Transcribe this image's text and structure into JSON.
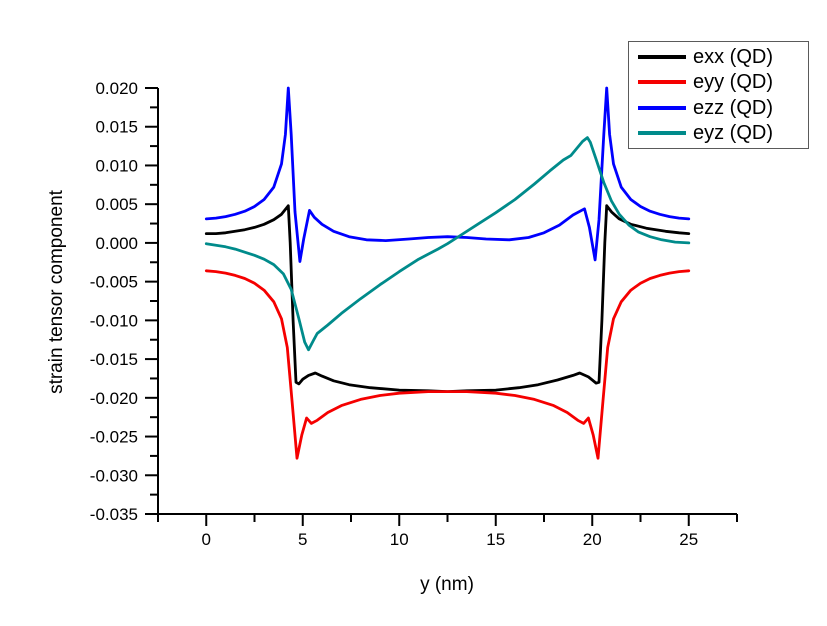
{
  "chart_data": {
    "type": "line",
    "title": "",
    "xlabel": "y (nm)",
    "ylabel": "strain tensor component",
    "xlim": [
      -2.5,
      27.5
    ],
    "ylim": [
      -0.035,
      0.02
    ],
    "grid": false,
    "legend_position": "top-right",
    "axis_color": "#000000",
    "x_tick_values": [
      0,
      5,
      10,
      15,
      20,
      25
    ],
    "x_tick_labels": [
      "0",
      "5",
      "10",
      "15",
      "20",
      "25"
    ],
    "x_minor_ticks": [
      -2.5,
      2.5,
      7.5,
      12.5,
      17.5,
      22.5,
      27.5
    ],
    "y_tick_values": [
      0.02,
      0.015,
      0.01,
      0.005,
      0.0,
      -0.005,
      -0.01,
      -0.015,
      -0.02,
      -0.025,
      -0.03,
      -0.035
    ],
    "y_tick_labels": [
      "0.020",
      "0.015",
      "0.010",
      "0.005",
      "0.000",
      "-0.005",
      "-0.010",
      "-0.015",
      "-0.020",
      "-0.025",
      "-0.030",
      "-0.035"
    ],
    "y_minor_ticks": [
      0.0175,
      0.0125,
      0.0075,
      0.0025,
      -0.0025,
      -0.0075,
      -0.0125,
      -0.0175,
      -0.0225,
      -0.0275,
      -0.0325
    ],
    "series": [
      {
        "name": "exx",
        "label": "exx (QD)",
        "color": "#000000",
        "points": [
          [
            0,
            0.0012
          ],
          [
            0.5,
            0.0012
          ],
          [
            1,
            0.0013
          ],
          [
            1.5,
            0.0015
          ],
          [
            2,
            0.0017
          ],
          [
            2.5,
            0.002
          ],
          [
            3,
            0.0024
          ],
          [
            3.5,
            0.003
          ],
          [
            3.9,
            0.0037
          ],
          [
            4.25,
            0.0048
          ],
          [
            4.35,
            0.0
          ],
          [
            4.5,
            -0.01
          ],
          [
            4.65,
            -0.018
          ],
          [
            4.8,
            -0.0182
          ],
          [
            5,
            -0.0176
          ],
          [
            5.3,
            -0.0171
          ],
          [
            5.65,
            -0.0168
          ],
          [
            6,
            -0.0172
          ],
          [
            6.6,
            -0.0178
          ],
          [
            7.4,
            -0.0183
          ],
          [
            8.5,
            -0.0187
          ],
          [
            10,
            -0.019
          ],
          [
            11.5,
            -0.0191
          ],
          [
            12.5,
            -0.0192
          ],
          [
            13.5,
            -0.0191
          ],
          [
            15,
            -0.019
          ],
          [
            16.2,
            -0.0187
          ],
          [
            17.2,
            -0.0183
          ],
          [
            18.2,
            -0.0177
          ],
          [
            19,
            -0.0171
          ],
          [
            19.35,
            -0.0168
          ],
          [
            19.8,
            -0.0173
          ],
          [
            20.2,
            -0.0181
          ],
          [
            20.35,
            -0.018
          ],
          [
            20.5,
            -0.01
          ],
          [
            20.65,
            0.0
          ],
          [
            20.75,
            0.0048
          ],
          [
            21,
            0.004
          ],
          [
            21.4,
            0.0031
          ],
          [
            22,
            0.0024
          ],
          [
            22.8,
            0.0019
          ],
          [
            23.8,
            0.0015
          ],
          [
            24.5,
            0.0013
          ],
          [
            25,
            0.0012
          ]
        ]
      },
      {
        "name": "eyy",
        "label": "eyy (QD)",
        "color": "#f50000",
        "points": [
          [
            0,
            -0.0036
          ],
          [
            0.5,
            -0.0037
          ],
          [
            1,
            -0.0039
          ],
          [
            1.5,
            -0.0042
          ],
          [
            2,
            -0.0046
          ],
          [
            2.5,
            -0.0052
          ],
          [
            3,
            -0.0061
          ],
          [
            3.5,
            -0.0076
          ],
          [
            3.9,
            -0.0098
          ],
          [
            4.2,
            -0.0135
          ],
          [
            4.45,
            -0.0205
          ],
          [
            4.7,
            -0.0278
          ],
          [
            4.95,
            -0.0248
          ],
          [
            5.2,
            -0.0226
          ],
          [
            5.45,
            -0.0233
          ],
          [
            5.75,
            -0.0229
          ],
          [
            6.3,
            -0.0219
          ],
          [
            7,
            -0.021
          ],
          [
            8,
            -0.0202
          ],
          [
            9,
            -0.0197
          ],
          [
            10,
            -0.0194
          ],
          [
            11.5,
            -0.0192
          ],
          [
            12.5,
            -0.0192
          ],
          [
            13.5,
            -0.0192
          ],
          [
            15,
            -0.0194
          ],
          [
            16,
            -0.0197
          ],
          [
            17,
            -0.0202
          ],
          [
            18,
            -0.021
          ],
          [
            18.7,
            -0.0219
          ],
          [
            19.25,
            -0.0229
          ],
          [
            19.55,
            -0.0233
          ],
          [
            19.8,
            -0.0226
          ],
          [
            20.05,
            -0.0248
          ],
          [
            20.3,
            -0.0278
          ],
          [
            20.55,
            -0.0205
          ],
          [
            20.8,
            -0.0135
          ],
          [
            21.1,
            -0.0098
          ],
          [
            21.5,
            -0.0076
          ],
          [
            22,
            -0.0061
          ],
          [
            22.5,
            -0.0052
          ],
          [
            23,
            -0.0046
          ],
          [
            23.5,
            -0.0042
          ],
          [
            24,
            -0.0039
          ],
          [
            24.5,
            -0.0037
          ],
          [
            25,
            -0.0036
          ]
        ]
      },
      {
        "name": "ezz",
        "label": "ezz (QD)",
        "color": "#0000ff",
        "points": [
          [
            0,
            0.0031
          ],
          [
            0.5,
            0.0032
          ],
          [
            1,
            0.0034
          ],
          [
            1.5,
            0.0037
          ],
          [
            2,
            0.0041
          ],
          [
            2.5,
            0.0047
          ],
          [
            3,
            0.0056
          ],
          [
            3.5,
            0.0072
          ],
          [
            3.9,
            0.0102
          ],
          [
            4.1,
            0.014
          ],
          [
            4.25,
            0.02
          ],
          [
            4.4,
            0.014
          ],
          [
            4.6,
            0.004
          ],
          [
            4.85,
            -0.0024
          ],
          [
            5.05,
            0.0005
          ],
          [
            5.35,
            0.0042
          ],
          [
            5.6,
            0.0033
          ],
          [
            6,
            0.0024
          ],
          [
            6.6,
            0.0015
          ],
          [
            7.4,
            0.0008
          ],
          [
            8.3,
            0.0004
          ],
          [
            9.3,
            0.0003
          ],
          [
            10.5,
            0.0005
          ],
          [
            11.5,
            0.0007
          ],
          [
            12.5,
            0.0008
          ],
          [
            13.5,
            0.0007
          ],
          [
            14.5,
            0.0005
          ],
          [
            15.7,
            0.0004
          ],
          [
            16.7,
            0.0007
          ],
          [
            17.5,
            0.0013
          ],
          [
            18.3,
            0.0023
          ],
          [
            19,
            0.0036
          ],
          [
            19.6,
            0.0044
          ],
          [
            19.85,
            0.002
          ],
          [
            20.15,
            -0.0022
          ],
          [
            20.35,
            0.003
          ],
          [
            20.6,
            0.014
          ],
          [
            20.75,
            0.02
          ],
          [
            20.9,
            0.014
          ],
          [
            21.1,
            0.0102
          ],
          [
            21.5,
            0.0072
          ],
          [
            22,
            0.0056
          ],
          [
            22.5,
            0.0047
          ],
          [
            23,
            0.0041
          ],
          [
            23.5,
            0.0037
          ],
          [
            24,
            0.0034
          ],
          [
            24.5,
            0.0032
          ],
          [
            25,
            0.0031
          ]
        ]
      },
      {
        "name": "eyz",
        "label": "eyz (QD)",
        "color": "#008b8b",
        "points": [
          [
            0,
            -0.0001
          ],
          [
            0.5,
            -0.0003
          ],
          [
            1,
            -0.0005
          ],
          [
            1.5,
            -0.0008
          ],
          [
            2,
            -0.0012
          ],
          [
            2.5,
            -0.0016
          ],
          [
            3,
            -0.0021
          ],
          [
            3.5,
            -0.0028
          ],
          [
            4,
            -0.004
          ],
          [
            4.4,
            -0.006
          ],
          [
            4.8,
            -0.0098
          ],
          [
            5.1,
            -0.0128
          ],
          [
            5.3,
            -0.0138
          ],
          [
            5.55,
            -0.0126
          ],
          [
            5.75,
            -0.0117
          ],
          [
            6.3,
            -0.0106
          ],
          [
            7,
            -0.0091
          ],
          [
            8,
            -0.0072
          ],
          [
            9,
            -0.0054
          ],
          [
            10,
            -0.0037
          ],
          [
            11,
            -0.0021
          ],
          [
            12,
            -0.0008
          ],
          [
            12.5,
            -0.0001
          ],
          [
            13,
            0.0007
          ],
          [
            14,
            0.0023
          ],
          [
            15,
            0.0039
          ],
          [
            16,
            0.0056
          ],
          [
            17,
            0.0076
          ],
          [
            17.8,
            0.0093
          ],
          [
            18.5,
            0.0107
          ],
          [
            18.9,
            0.0113
          ],
          [
            19.2,
            0.0122
          ],
          [
            19.5,
            0.0131
          ],
          [
            19.75,
            0.0136
          ],
          [
            19.9,
            0.013
          ],
          [
            20.2,
            0.0108
          ],
          [
            20.6,
            0.0078
          ],
          [
            21,
            0.0054
          ],
          [
            21.4,
            0.0037
          ],
          [
            21.9,
            0.0023
          ],
          [
            22.4,
            0.0014
          ],
          [
            23,
            0.0008
          ],
          [
            23.6,
            0.0004
          ],
          [
            24.3,
            0.0001
          ],
          [
            25,
            0.0
          ]
        ]
      }
    ]
  }
}
